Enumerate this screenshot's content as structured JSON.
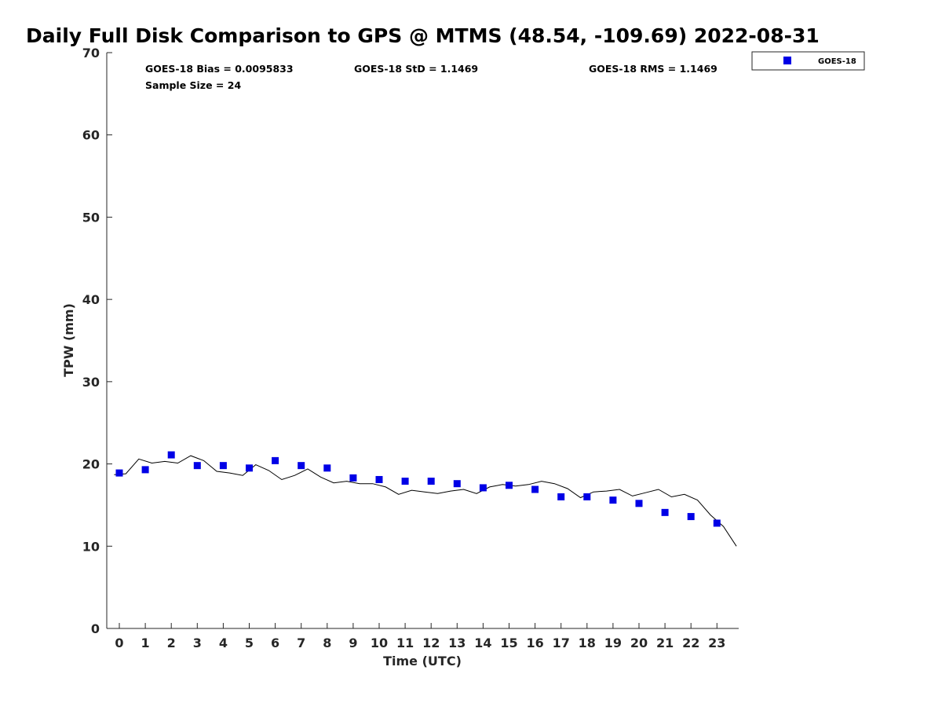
{
  "chart_data": {
    "type": "scatter",
    "title": "Daily Full Disk Comparison to GPS @ MTMS (48.54, -109.69) 2022-08-31",
    "xlabel": "Time (UTC)",
    "ylabel": "TPW (mm)",
    "xlim": [
      -0.5,
      23.8
    ],
    "ylim": [
      0,
      70
    ],
    "x_ticks": [
      0,
      1,
      2,
      3,
      4,
      5,
      6,
      7,
      8,
      9,
      10,
      11,
      12,
      13,
      14,
      15,
      16,
      17,
      18,
      19,
      20,
      21,
      22,
      23
    ],
    "y_ticks": [
      0,
      10,
      20,
      30,
      40,
      50,
      60,
      70
    ],
    "grid": false,
    "legend_position": "top-right",
    "stats": {
      "bias": "GOES-18 Bias = 0.0095833",
      "std": "GOES-18 StD = 1.1469",
      "rms": "GOES-18 RMS = 1.1469",
      "sample_size": "Sample Size = 24"
    },
    "series": [
      {
        "name": "GOES-18",
        "marker": "square",
        "color": "#0000e6",
        "x": [
          0,
          1,
          2,
          3,
          4,
          5,
          6,
          7,
          8,
          9,
          10,
          11,
          12,
          13,
          14,
          15,
          16,
          17,
          18,
          19,
          20,
          21,
          22,
          23
        ],
        "y": [
          18.9,
          19.3,
          21.1,
          19.8,
          19.8,
          19.5,
          20.4,
          19.8,
          19.5,
          18.3,
          18.1,
          17.9,
          17.9,
          17.6,
          17.1,
          17.4,
          16.9,
          16.0,
          16.0,
          15.6,
          15.2,
          14.1,
          13.6,
          12.8
        ]
      },
      {
        "marker": "line",
        "color": "#000000",
        "x": [
          -0.2,
          0.25,
          0.75,
          1.25,
          1.75,
          2.25,
          2.75,
          3.25,
          3.75,
          4.25,
          4.75,
          5.25,
          5.75,
          6.25,
          6.75,
          7.25,
          7.75,
          8.25,
          8.75,
          9.25,
          9.75,
          10.25,
          10.75,
          11.25,
          11.75,
          12.25,
          12.75,
          13.25,
          13.75,
          14.25,
          14.75,
          15.25,
          15.75,
          16.25,
          16.75,
          17.25,
          17.75,
          18.25,
          18.75,
          19.25,
          19.75,
          20.25,
          20.75,
          21.25,
          21.75,
          22.25,
          22.75,
          23.25,
          23.75
        ],
        "y": [
          18.7,
          18.8,
          20.6,
          20.1,
          20.3,
          20.1,
          21.0,
          20.4,
          19.1,
          18.9,
          18.6,
          19.9,
          19.2,
          18.1,
          18.6,
          19.4,
          18.4,
          17.7,
          17.9,
          17.6,
          17.6,
          17.2,
          16.3,
          16.8,
          16.6,
          16.4,
          16.7,
          16.9,
          16.4,
          17.2,
          17.5,
          17.3,
          17.5,
          17.9,
          17.6,
          17.0,
          15.9,
          16.6,
          16.7,
          16.9,
          16.1,
          16.5,
          16.9,
          16.0,
          16.3,
          15.6,
          13.8,
          12.4,
          10.0
        ]
      }
    ]
  }
}
